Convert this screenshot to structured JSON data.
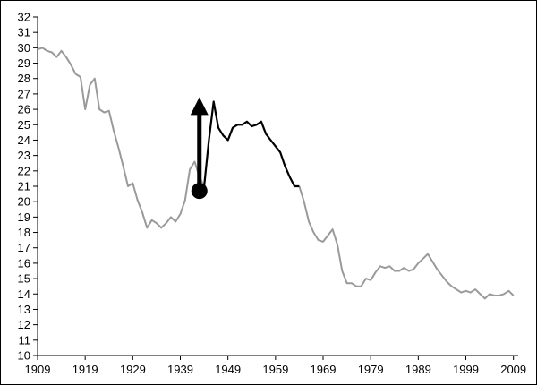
{
  "chart_data": {
    "type": "line",
    "xlabel": "",
    "ylabel": "",
    "xlim": [
      1909,
      2010
    ],
    "ylim": [
      10,
      32
    ],
    "x_ticks": [
      "1909",
      "1919",
      "1929",
      "1939",
      "1949",
      "1959",
      "1969",
      "1979",
      "1989",
      "1999",
      "2009"
    ],
    "y_ticks": [
      "10",
      "11",
      "12",
      "13",
      "14",
      "15",
      "16",
      "17",
      "18",
      "19",
      "20",
      "21",
      "22",
      "23",
      "24",
      "25",
      "26",
      "27",
      "28",
      "29",
      "30",
      "31",
      "32"
    ],
    "grid": false,
    "series": [
      {
        "color": "#9a9a9a",
        "segments": [
          {
            "x": [
              1909,
              1910,
              1911,
              1912,
              1913,
              1914,
              1915,
              1916,
              1917,
              1918,
              1919,
              1920,
              1921,
              1922,
              1923,
              1924,
              1925,
              1926,
              1927,
              1928,
              1929,
              1930,
              1931,
              1932,
              1933,
              1934,
              1935,
              1936,
              1937,
              1938,
              1939,
              1940,
              1941,
              1942,
              1943,
              1944
            ],
            "y": [
              29.9,
              30.0,
              29.8,
              29.7,
              29.4,
              29.8,
              29.4,
              28.9,
              28.3,
              28.1,
              26.0,
              27.6,
              28.0,
              26.0,
              25.8,
              25.9,
              24.6,
              23.5,
              22.3,
              21.0,
              21.2,
              20.1,
              19.3,
              18.3,
              18.8,
              18.6,
              18.3,
              18.6,
              19.0,
              18.7,
              19.2,
              20.1,
              22.1,
              22.6,
              21.6,
              21.0
            ]
          },
          {
            "x": [
              1964,
              1965,
              1966,
              1967,
              1968,
              1969,
              1970,
              1971,
              1972,
              1973,
              1974,
              1975,
              1976,
              1977,
              1978,
              1979,
              1980,
              1981,
              1982,
              1983,
              1984,
              1985,
              1986,
              1987,
              1988,
              1989,
              1990,
              1991,
              1992,
              1993,
              1994,
              1995,
              1996,
              1997,
              1998,
              1999,
              2000,
              2001,
              2002,
              2003,
              2004,
              2005,
              2006,
              2007,
              2008,
              2009
            ],
            "y": [
              21.0,
              20.0,
              18.7,
              18.0,
              17.5,
              17.4,
              17.8,
              18.2,
              17.2,
              15.5,
              14.7,
              14.7,
              14.5,
              14.5,
              15.0,
              14.9,
              15.4,
              15.8,
              15.7,
              15.8,
              15.5,
              15.5,
              15.7,
              15.5,
              15.6,
              16.0,
              16.3,
              16.6,
              16.1,
              15.6,
              15.2,
              14.8,
              14.5,
              14.3,
              14.1,
              14.2,
              14.1,
              14.3,
              14.0,
              13.7,
              14.0,
              13.9,
              13.9,
              14.0,
              14.2,
              13.9
            ]
          }
        ]
      },
      {
        "color": "#000000",
        "segments": [
          {
            "x": [
              1944,
              1945,
              1946,
              1947,
              1948,
              1949,
              1950,
              1951,
              1952,
              1953,
              1954,
              1955,
              1956,
              1957,
              1958,
              1959,
              1960,
              1961,
              1962,
              1963,
              1964
            ],
            "y": [
              21.0,
              24.0,
              26.5,
              24.8,
              24.3,
              24.0,
              24.8,
              25.0,
              25.0,
              25.2,
              24.9,
              25.0,
              25.2,
              24.4,
              24.0,
              23.6,
              23.2,
              22.3,
              21.6,
              21.0,
              21.0
            ]
          }
        ]
      }
    ],
    "annotation": {
      "type": "arrow",
      "x": 1943,
      "y_start": 20.7,
      "y_end": 26.8,
      "color": "#000000"
    }
  }
}
